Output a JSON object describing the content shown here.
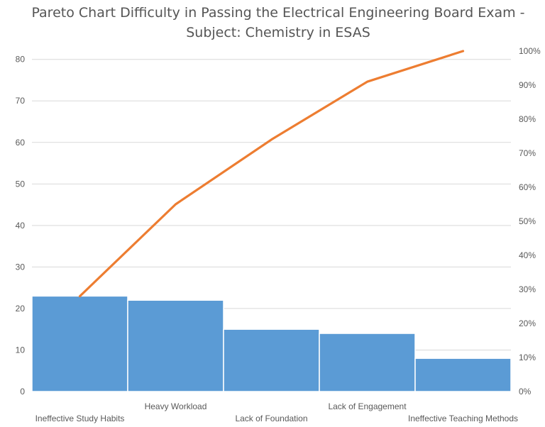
{
  "chart_data": {
    "type": "bar",
    "title": "Pareto Chart Difficulty in Passing the Electrical Engineering Board Exam - Subject: Chemistry in ESAS",
    "title_lines": [
      "Pareto Chart Difficulty in Passing the Electrical Engineering Board Exam -",
      "Subject: Chemistry in ESAS"
    ],
    "categories": [
      "Ineffective Study Habits",
      "Heavy Workload",
      "Lack of Foundation",
      "Lack of Engagement",
      "Ineffective Teaching Methods"
    ],
    "series": [
      {
        "type": "bar",
        "axis": "left",
        "values": [
          23,
          22,
          15,
          14,
          8
        ]
      },
      {
        "type": "line",
        "axis": "right",
        "values": [
          28,
          55,
          74,
          91,
          100
        ]
      }
    ],
    "ylim_left": [
      0,
      82
    ],
    "yticks_left": [
      "0",
      "10",
      "20",
      "30",
      "40",
      "50",
      "60",
      "70",
      "80"
    ],
    "ylim_right": [
      0,
      100
    ],
    "yticks_right": [
      "0%",
      "10%",
      "20%",
      "30%",
      "40%",
      "50%",
      "60%",
      "70%",
      "80%",
      "90%",
      "100%"
    ],
    "grid": true,
    "legend": "none",
    "colors": {
      "bar": "#5b9bd5",
      "line": "#ed7d31",
      "grid": "#d9d9d9"
    }
  }
}
